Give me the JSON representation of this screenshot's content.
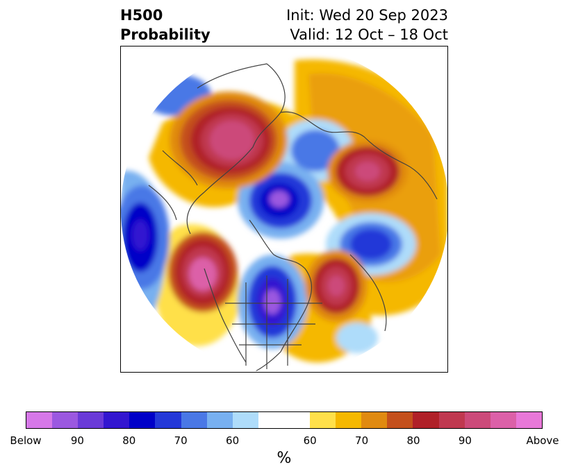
{
  "title": {
    "left_line1": "H500",
    "left_line2": "Probability",
    "right_line1": "Init: Wed 20 Sep 2023",
    "right_line2": "Valid: 12 Oct – 18 Oct"
  },
  "map": {
    "projection": "north-polar-stereographic",
    "anomaly_centers": [
      {
        "region": "northeast-pacific-alaska",
        "sign": "above",
        "level": "Above"
      },
      {
        "region": "scandinavia-northern-europe",
        "sign": "above",
        "level": "90"
      },
      {
        "region": "north-pacific-aleutians",
        "sign": "above",
        "level": "Above"
      },
      {
        "region": "north-atlantic",
        "sign": "above",
        "level": "90"
      },
      {
        "region": "arctic-ocean-pole",
        "sign": "below",
        "level": "Below"
      },
      {
        "region": "central-north-america",
        "sign": "below",
        "level": "Below"
      },
      {
        "region": "western-siberia",
        "sign": "below",
        "level": "80"
      },
      {
        "region": "east-asia-japan",
        "sign": "below",
        "level": "90"
      },
      {
        "region": "greenland-iceland",
        "sign": "below",
        "level": "70"
      }
    ]
  },
  "colorbar": {
    "colors": [
      "#d678e8",
      "#9b58e0",
      "#6a3ad8",
      "#3316d0",
      "#0000c8",
      "#2438d8",
      "#4a78e6",
      "#78b0f0",
      "#aedcfa",
      "#ffffff",
      "#ffe04a",
      "#f5b800",
      "#e08a10",
      "#c4501c",
      "#b02028",
      "#c03850",
      "#cc4a7a",
      "#dc60a8",
      "#e878d8"
    ],
    "weights": [
      1,
      1,
      1,
      1,
      1,
      1,
      1,
      1,
      1,
      2,
      1,
      1,
      1,
      1,
      1,
      1,
      1,
      1,
      1
    ],
    "tick_labels": [
      "Below",
      "90",
      "80",
      "70",
      "60",
      "60",
      "70",
      "80",
      "90",
      "Above"
    ],
    "unit": "%"
  }
}
